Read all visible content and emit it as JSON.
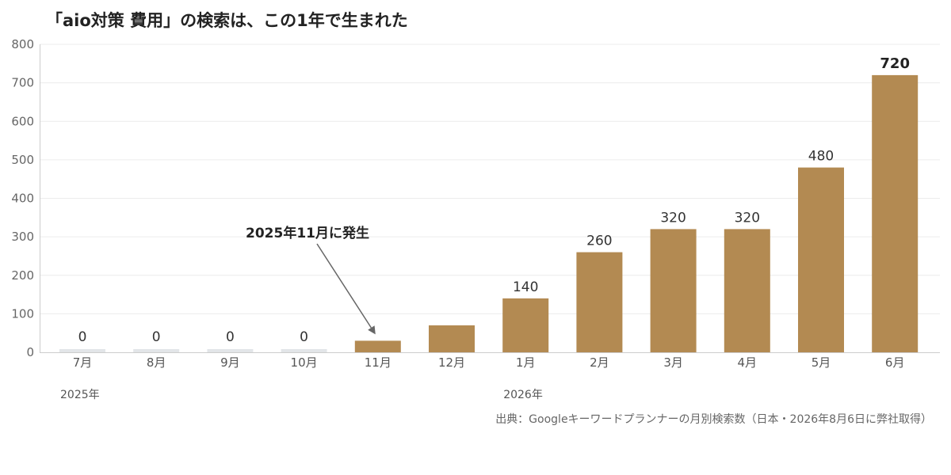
{
  "chart_data": {
    "type": "bar",
    "title": "「aio対策 費用」の検索は、この1年で生まれた",
    "categories": [
      "7月",
      "8月",
      "9月",
      "10月",
      "11月",
      "12月",
      "1月",
      "2月",
      "3月",
      "4月",
      "5月",
      "6月"
    ],
    "values": [
      0,
      0,
      0,
      0,
      30,
      70,
      140,
      260,
      320,
      320,
      480,
      720
    ],
    "data_labels": [
      "0",
      "0",
      "0",
      "0",
      "",
      "",
      "140",
      "260",
      "320",
      "320",
      "480",
      "720"
    ],
    "year_labels": [
      {
        "label": "2025年",
        "start_index": 0
      },
      {
        "label": "2026年",
        "start_index": 6
      }
    ],
    "ylim": [
      0,
      800
    ],
    "yticks": [
      0,
      100,
      200,
      300,
      400,
      500,
      600,
      700,
      800
    ],
    "grid": true,
    "bar_color": "#b38a52",
    "zero_bar_color": "#e2e5e8",
    "highlight_index": 11,
    "annotation": {
      "text": "2025年11月に発生",
      "target_index": 4
    },
    "source": "出典：Googleキーワードプランナーの月別検索数（日本・2026年8月6日に弊社取得）"
  }
}
